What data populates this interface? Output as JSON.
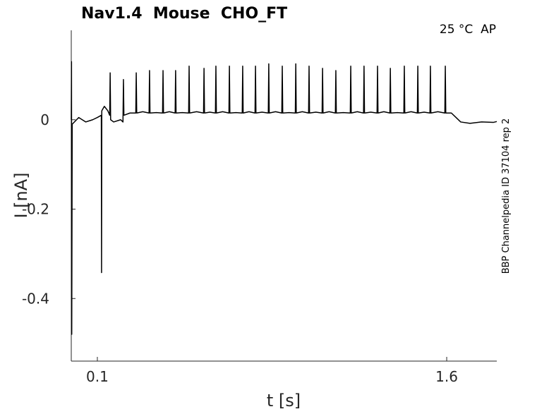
{
  "chart_data": {
    "type": "line",
    "title": "Nav1.4  Mouse  CHO_FT",
    "annotation": "25 °C  AP",
    "side_label": "BBP Channelpedia ID 37104 rep 2",
    "x_label": "t [s]",
    "y_label": "I [nA]",
    "color": "#000000",
    "xlim": [
      -0.012,
      1.815
    ],
    "ylim": [
      -0.54,
      0.2
    ],
    "xticks": [
      0.1,
      1.6
    ],
    "yticks": [
      0,
      -0.2,
      -0.4
    ],
    "x": [
      -0.012,
      -0.011,
      -0.01,
      -0.008,
      0.02,
      0.05,
      0.08,
      0.1,
      0.117,
      0.118,
      0.119,
      0.13,
      0.145,
      0.153,
      0.155,
      0.157,
      0.17,
      0.2,
      0.21,
      0.212,
      0.214,
      0.24,
      0.265,
      0.267,
      0.269,
      0.295,
      0.322,
      0.324,
      0.326,
      0.353,
      0.38,
      0.382,
      0.384,
      0.409,
      0.434,
      0.436,
      0.438,
      0.465,
      0.492,
      0.494,
      0.496,
      0.526,
      0.556,
      0.558,
      0.56,
      0.583,
      0.607,
      0.609,
      0.611,
      0.638,
      0.665,
      0.667,
      0.669,
      0.695,
      0.722,
      0.724,
      0.726,
      0.751,
      0.777,
      0.779,
      0.781,
      0.807,
      0.834,
      0.836,
      0.838,
      0.865,
      0.892,
      0.894,
      0.896,
      0.923,
      0.95,
      0.952,
      0.954,
      0.98,
      1.007,
      1.009,
      1.011,
      1.038,
      1.065,
      1.067,
      1.069,
      1.095,
      1.122,
      1.124,
      1.126,
      1.156,
      1.186,
      1.188,
      1.19,
      1.216,
      1.243,
      1.245,
      1.247,
      1.274,
      1.301,
      1.303,
      1.305,
      1.33,
      1.356,
      1.358,
      1.36,
      1.388,
      1.416,
      1.418,
      1.42,
      1.447,
      1.474,
      1.476,
      1.478,
      1.503,
      1.528,
      1.53,
      1.532,
      1.562,
      1.592,
      1.594,
      1.596,
      1.62,
      1.64,
      1.66,
      1.7,
      1.75,
      1.8,
      1.815
    ],
    "values": [
      0.0,
      0.13,
      -0.48,
      -0.01,
      0.005,
      -0.005,
      0.0,
      0.005,
      0.01,
      -0.342,
      0.02,
      0.03,
      0.02,
      0.01,
      0.105,
      0.0,
      -0.005,
      0.0,
      -0.005,
      0.09,
      0.01,
      0.015,
      0.015,
      0.105,
      0.015,
      0.018,
      0.015,
      0.11,
      0.015,
      0.016,
      0.015,
      0.11,
      0.015,
      0.018,
      0.015,
      0.11,
      0.015,
      0.016,
      0.015,
      0.12,
      0.015,
      0.018,
      0.015,
      0.115,
      0.015,
      0.017,
      0.015,
      0.12,
      0.015,
      0.018,
      0.015,
      0.12,
      0.015,
      0.016,
      0.015,
      0.12,
      0.015,
      0.018,
      0.015,
      0.12,
      0.015,
      0.017,
      0.015,
      0.125,
      0.015,
      0.018,
      0.015,
      0.12,
      0.015,
      0.016,
      0.015,
      0.125,
      0.015,
      0.018,
      0.015,
      0.12,
      0.015,
      0.017,
      0.015,
      0.115,
      0.015,
      0.018,
      0.015,
      0.11,
      0.015,
      0.016,
      0.015,
      0.12,
      0.015,
      0.018,
      0.015,
      0.12,
      0.015,
      0.017,
      0.015,
      0.12,
      0.015,
      0.018,
      0.015,
      0.115,
      0.015,
      0.016,
      0.015,
      0.12,
      0.015,
      0.018,
      0.015,
      0.12,
      0.015,
      0.017,
      0.015,
      0.12,
      0.015,
      0.018,
      0.015,
      0.12,
      0.015,
      0.015,
      0.005,
      -0.005,
      -0.008,
      -0.005,
      -0.006,
      -0.004
    ]
  }
}
